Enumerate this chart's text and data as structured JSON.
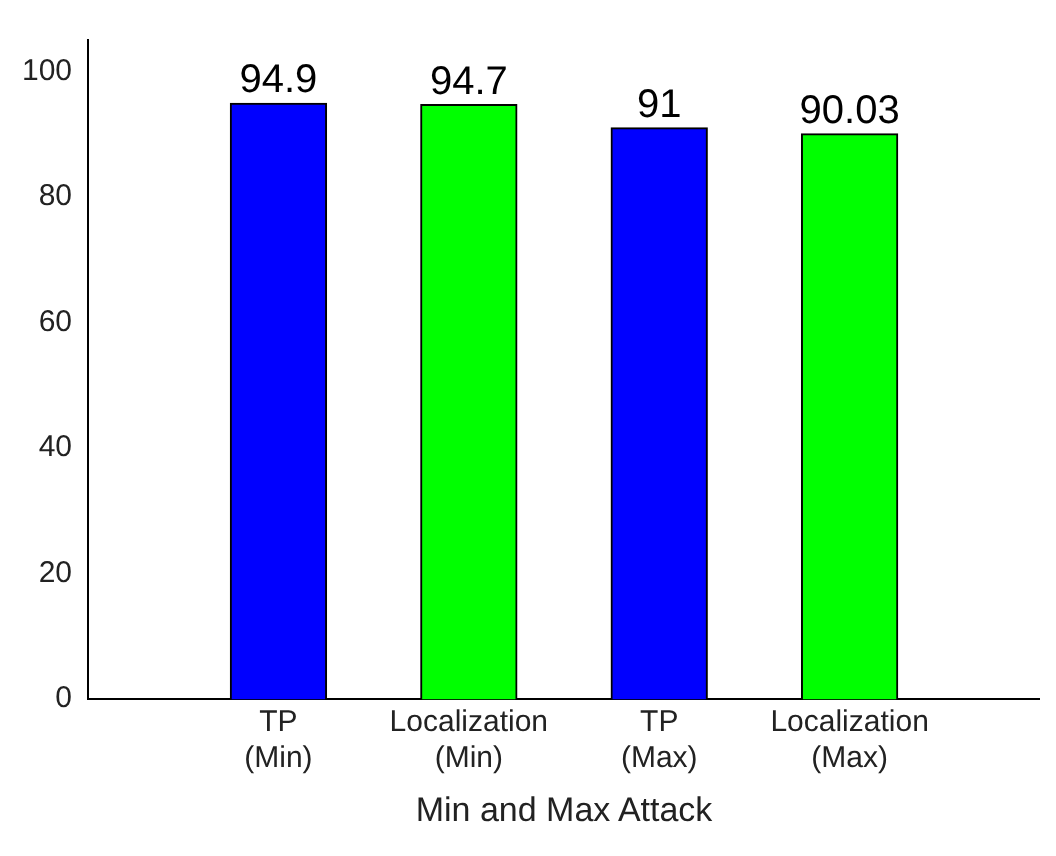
{
  "chart_data": {
    "type": "bar",
    "xlabel": "Min and Max Attack",
    "categories": [
      "TP (Min)",
      "Localization (Min)",
      "TP (Max)",
      "Localization (Max)"
    ],
    "values": [
      94.9,
      94.7,
      91,
      90.03
    ],
    "colors": [
      "#0000ff",
      "#00ff00",
      "#0000ff",
      "#00ff00"
    ],
    "ylim": [
      0,
      105
    ],
    "yticks": [
      0,
      20,
      40,
      60,
      80,
      100
    ],
    "grid": false,
    "legend": false,
    "data_labels": true
  }
}
